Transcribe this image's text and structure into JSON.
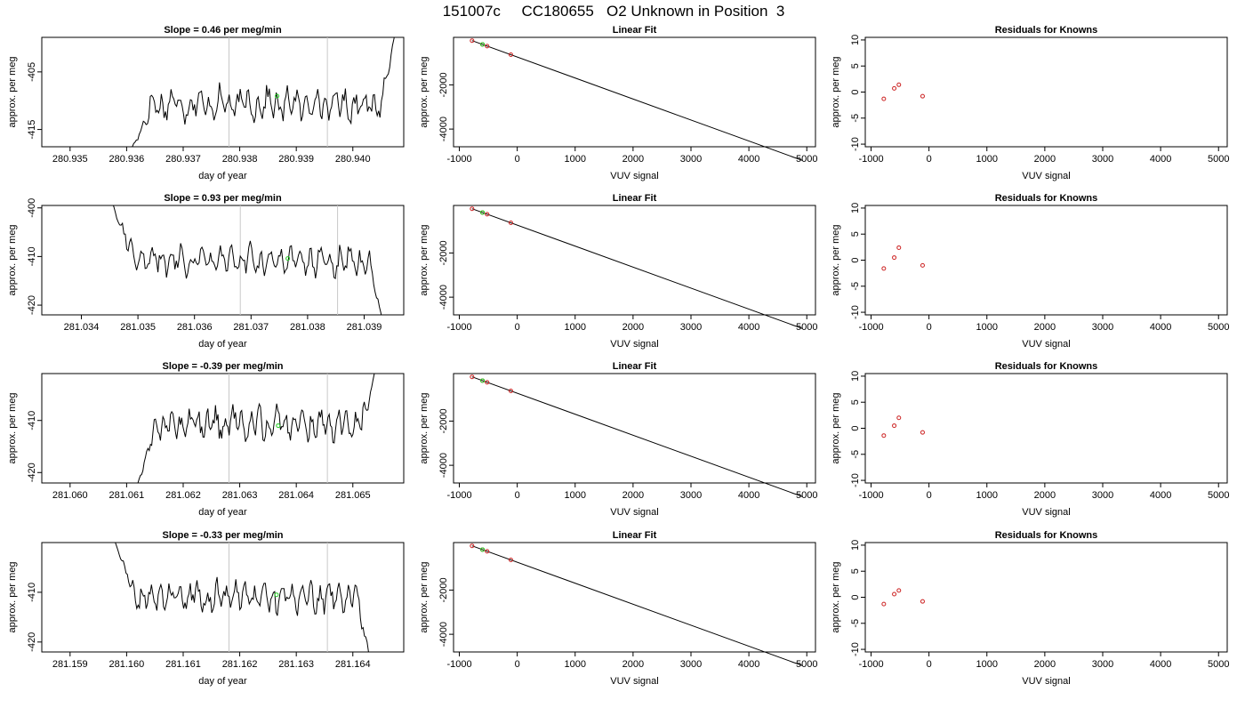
{
  "title": "151007c     CC180655   O2 Unknown in Position  3",
  "colors": {
    "trace": "#000000",
    "known_point": "#cc2222",
    "unknown_point": "#22cc22",
    "window_line": "#c8c8c8"
  },
  "rows": [
    {
      "time": {
        "title": "Slope =  0.46  per meg/min",
        "xlabel": "day of year",
        "ylabel": "approx. per meg",
        "xlim": [
          280.9345,
          280.9409
        ],
        "ylim": [
          -418,
          -399
        ],
        "xticks": [
          280.935,
          280.936,
          280.937,
          280.938,
          280.939,
          280.94
        ],
        "xtick_labels": [
          "280.935",
          "280.936",
          "280.937",
          "280.938",
          "280.939",
          "280.940"
        ],
        "yticks": [
          -405,
          -415
        ],
        "ytick_labels": [
          "-405",
          "-415"
        ],
        "vlines": [
          280.93781,
          280.93955
        ],
        "start": 280.9361,
        "end": 280.94075,
        "base": -410.6,
        "amp": 1.7,
        "jitter": 0.7,
        "start_edge": {
          "from": -418,
          "to": -413
        },
        "end_edge": {
          "from": -413,
          "to": -398
        },
        "marker": {
          "x": 280.93866,
          "y": -409.2
        }
      },
      "fit": {
        "title": "Linear Fit",
        "xlabel": "VUV signal",
        "ylabel": "approx. per meg",
        "xlim": [
          -1100,
          5150
        ],
        "ylim": [
          -4800,
          150
        ],
        "xticks": [
          -1000,
          0,
          1000,
          2000,
          3000,
          4000,
          5000
        ],
        "xtick_labels": [
          "-1000",
          "0",
          "1000",
          "2000",
          "3000",
          "4000",
          "5000"
        ],
        "yticks": [
          -2000,
          -4000
        ],
        "ytick_labels": [
          "-2000",
          "-4000"
        ],
        "line": {
          "x0": -780,
          "x1": 4920,
          "slope": -0.95,
          "intercept": -740
        },
        "knowns_x": [
          -780,
          -600,
          -520,
          -110
        ],
        "unknown_x": -600
      },
      "residuals": {
        "title": "Residuals for Knowns",
        "xlabel": "VUV signal",
        "ylabel": "approx. per meg",
        "xlim": [
          -1100,
          5150
        ],
        "ylim": [
          -10.5,
          10.5
        ],
        "xticks": [
          -1000,
          0,
          1000,
          2000,
          3000,
          4000,
          5000
        ],
        "xtick_labels": [
          "-1000",
          "0",
          "1000",
          "2000",
          "3000",
          "4000",
          "5000"
        ],
        "yticks": [
          10,
          5,
          0,
          -5,
          -10
        ],
        "ytick_labels": [
          "10",
          "5",
          "0",
          "-5",
          "-10"
        ],
        "points": [
          {
            "x": -780,
            "y": -1.3
          },
          {
            "x": -600,
            "y": 0.7
          },
          {
            "x": -520,
            "y": 1.4
          },
          {
            "x": -110,
            "y": -0.8
          }
        ]
      }
    },
    {
      "time": {
        "title": "Slope =  0.93  per meg/min",
        "xlabel": "day of year",
        "ylabel": "approx. per meg",
        "xlim": [
          281.0333,
          281.0397
        ],
        "ylim": [
          -422,
          -399.5
        ],
        "xticks": [
          281.034,
          281.035,
          281.036,
          281.037,
          281.038,
          281.039
        ],
        "xtick_labels": [
          "281.034",
          "281.035",
          "281.036",
          "281.037",
          "281.038",
          "281.039"
        ],
        "yticks": [
          -400,
          -410,
          -420
        ],
        "ytick_labels": [
          "-400",
          "-410",
          "-420"
        ],
        "vlines": [
          281.03681,
          281.03853
        ],
        "start": 281.03455,
        "end": 281.03932,
        "base": -410.8,
        "amp": 2.0,
        "jitter": 0.8,
        "start_edge": {
          "from": -399,
          "to": -408
        },
        "end_edge": {
          "from": -411,
          "to": -423
        },
        "marker": {
          "x": 281.03765,
          "y": -410.4
        }
      },
      "fit": {
        "title": "Linear Fit",
        "xlabel": "VUV signal",
        "ylabel": "approx. per meg",
        "xlim": [
          -1100,
          5150
        ],
        "ylim": [
          -4800,
          150
        ],
        "xticks": [
          -1000,
          0,
          1000,
          2000,
          3000,
          4000,
          5000
        ],
        "xtick_labels": [
          "-1000",
          "0",
          "1000",
          "2000",
          "3000",
          "4000",
          "5000"
        ],
        "yticks": [
          -2000,
          -4000
        ],
        "ytick_labels": [
          "-2000",
          "-4000"
        ],
        "line": {
          "x0": -780,
          "x1": 4920,
          "slope": -0.95,
          "intercept": -740
        },
        "knowns_x": [
          -780,
          -600,
          -520,
          -110
        ],
        "unknown_x": -600
      },
      "residuals": {
        "title": "Residuals for Knowns",
        "xlabel": "VUV signal",
        "ylabel": "approx. per meg",
        "xlim": [
          -1100,
          5150
        ],
        "ylim": [
          -10.5,
          10.5
        ],
        "xticks": [
          -1000,
          0,
          1000,
          2000,
          3000,
          4000,
          5000
        ],
        "xtick_labels": [
          "-1000",
          "0",
          "1000",
          "2000",
          "3000",
          "4000",
          "5000"
        ],
        "yticks": [
          10,
          5,
          0,
          -5,
          -10
        ],
        "ytick_labels": [
          "10",
          "5",
          "0",
          "-5",
          "-10"
        ],
        "points": [
          {
            "x": -780,
            "y": -1.6
          },
          {
            "x": -600,
            "y": 0.5
          },
          {
            "x": -520,
            "y": 2.4
          },
          {
            "x": -110,
            "y": -1.0
          }
        ]
      }
    },
    {
      "time": {
        "title": "Slope =  -0.39  per meg/min",
        "xlabel": "day of year",
        "ylabel": "approx. per meg",
        "xlim": [
          281.0595,
          281.0659
        ],
        "ylim": [
          -422,
          -401
        ],
        "xticks": [
          281.06,
          281.061,
          281.062,
          281.063,
          281.064,
          281.065
        ],
        "xtick_labels": [
          "281.060",
          "281.061",
          "281.062",
          "281.063",
          "281.064",
          "281.065"
        ],
        "yticks": [
          -410,
          -420
        ],
        "ytick_labels": [
          "-410",
          "-420"
        ],
        "vlines": [
          281.06281,
          281.06455
        ],
        "start": 281.0612,
        "end": 281.0654,
        "base": -410.6,
        "amp": 1.9,
        "jitter": 0.8,
        "start_edge": {
          "from": -422,
          "to": -416
        },
        "end_edge": {
          "from": -410,
          "to": -400
        },
        "marker": {
          "x": 281.06368,
          "y": -411.0
        }
      },
      "fit": {
        "title": "Linear Fit",
        "xlabel": "VUV signal",
        "ylabel": "approx. per meg",
        "xlim": [
          -1100,
          5150
        ],
        "ylim": [
          -4800,
          150
        ],
        "xticks": [
          -1000,
          0,
          1000,
          2000,
          3000,
          4000,
          5000
        ],
        "xtick_labels": [
          "-1000",
          "0",
          "1000",
          "2000",
          "3000",
          "4000",
          "5000"
        ],
        "yticks": [
          -2000,
          -4000
        ],
        "ytick_labels": [
          "-2000",
          "-4000"
        ],
        "line": {
          "x0": -780,
          "x1": 4920,
          "slope": -0.95,
          "intercept": -740
        },
        "knowns_x": [
          -780,
          -600,
          -520,
          -110
        ],
        "unknown_x": -600
      },
      "residuals": {
        "title": "Residuals for Knowns",
        "xlabel": "VUV signal",
        "ylabel": "approx. per meg",
        "xlim": [
          -1100,
          5150
        ],
        "ylim": [
          -10.5,
          10.5
        ],
        "xticks": [
          -1000,
          0,
          1000,
          2000,
          3000,
          4000,
          5000
        ],
        "xtick_labels": [
          "-1000",
          "0",
          "1000",
          "2000",
          "3000",
          "4000",
          "5000"
        ],
        "yticks": [
          10,
          5,
          0,
          -5,
          -10
        ],
        "ytick_labels": [
          "10",
          "5",
          "0",
          "-5",
          "-10"
        ],
        "points": [
          {
            "x": -780,
            "y": -1.4
          },
          {
            "x": -600,
            "y": 0.5
          },
          {
            "x": -520,
            "y": 2.0
          },
          {
            "x": -110,
            "y": -0.8
          }
        ]
      }
    },
    {
      "time": {
        "title": "Slope =  -0.33  per meg/min",
        "xlabel": "day of year",
        "ylabel": "approx. per meg",
        "xlim": [
          281.1585,
          281.1649
        ],
        "ylim": [
          -422,
          -400
        ],
        "xticks": [
          281.159,
          281.16,
          281.161,
          281.162,
          281.163,
          281.164
        ],
        "xtick_labels": [
          "281.159",
          "281.160",
          "281.161",
          "281.162",
          "281.163",
          "281.164"
        ],
        "yticks": [
          -410,
          -420
        ],
        "ytick_labels": [
          "-410",
          "-420"
        ],
        "vlines": [
          281.16181,
          281.16355
        ],
        "start": 281.1598,
        "end": 281.1643,
        "base": -411.0,
        "amp": 1.9,
        "jitter": 0.8,
        "start_edge": {
          "from": -400,
          "to": -409
        },
        "end_edge": {
          "from": -410,
          "to": -423
        },
        "marker": {
          "x": 281.16265,
          "y": -410.5
        }
      },
      "fit": {
        "title": "Linear Fit",
        "xlabel": "VUV signal",
        "ylabel": "approx. per meg",
        "xlim": [
          -1100,
          5150
        ],
        "ylim": [
          -4800,
          150
        ],
        "xticks": [
          -1000,
          0,
          1000,
          2000,
          3000,
          4000,
          5000
        ],
        "xtick_labels": [
          "-1000",
          "0",
          "1000",
          "2000",
          "3000",
          "4000",
          "5000"
        ],
        "yticks": [
          -2000,
          -4000
        ],
        "ytick_labels": [
          "-2000",
          "-4000"
        ],
        "line": {
          "x0": -780,
          "x1": 4920,
          "slope": -0.95,
          "intercept": -740
        },
        "knowns_x": [
          -780,
          -600,
          -520,
          -110
        ],
        "unknown_x": -600
      },
      "residuals": {
        "title": "Residuals for Knowns",
        "xlabel": "VUV signal",
        "ylabel": "approx. per meg",
        "xlim": [
          -1100,
          5150
        ],
        "ylim": [
          -10.5,
          10.5
        ],
        "xticks": [
          -1000,
          0,
          1000,
          2000,
          3000,
          4000,
          5000
        ],
        "xtick_labels": [
          "-1000",
          "0",
          "1000",
          "2000",
          "3000",
          "4000",
          "5000"
        ],
        "yticks": [
          10,
          5,
          0,
          -5,
          -10
        ],
        "ytick_labels": [
          "10",
          "5",
          "0",
          "-5",
          "-10"
        ],
        "points": [
          {
            "x": -780,
            "y": -1.3
          },
          {
            "x": -600,
            "y": 0.6
          },
          {
            "x": -520,
            "y": 1.3
          },
          {
            "x": -110,
            "y": -0.8
          }
        ]
      }
    }
  ],
  "chart_data": [
    {
      "type": "line",
      "title": "Slope =  0.46  per meg/min",
      "xlabel": "day of year",
      "ylabel": "approx. per meg",
      "xlim": [
        280.9345,
        280.9409
      ],
      "ylim": [
        -418,
        -399
      ],
      "series": [
        {
          "x_range": [
            280.9361,
            280.94075
          ],
          "mean": -410.6
        }
      ],
      "highlight": {
        "x": 280.93866,
        "y": -409.2
      }
    },
    {
      "type": "line",
      "title": "Linear Fit",
      "xlabel": "VUV signal",
      "ylabel": "approx. per meg",
      "xlim": [
        -1100,
        5150
      ],
      "ylim": [
        -4800,
        150
      ],
      "line": {
        "x": [
          -780,
          4920
        ],
        "y": [
          0,
          -5415
        ]
      },
      "points_x": [
        -780,
        -600,
        -520,
        -110
      ]
    },
    {
      "type": "scatter",
      "title": "Residuals for Knowns",
      "xlabel": "VUV signal",
      "ylabel": "approx. per meg",
      "x": [
        -780,
        -600,
        -520,
        -110
      ],
      "y": [
        -1.3,
        0.7,
        1.4,
        -0.8
      ]
    },
    {
      "type": "line",
      "title": "Slope =  0.93  per meg/min",
      "xlabel": "day of year",
      "ylabel": "approx. per meg",
      "xlim": [
        281.0333,
        281.0397
      ],
      "ylim": [
        -422,
        -399.5
      ],
      "series": [
        {
          "x_range": [
            281.03455,
            281.03932
          ],
          "mean": -410.8
        }
      ],
      "highlight": {
        "x": 281.03765,
        "y": -410.4
      }
    },
    {
      "type": "line",
      "title": "Linear Fit",
      "xlabel": "VUV signal",
      "ylabel": "approx. per meg",
      "xlim": [
        -1100,
        5150
      ],
      "ylim": [
        -4800,
        150
      ],
      "line": {
        "x": [
          -780,
          4920
        ],
        "y": [
          0,
          -5415
        ]
      },
      "points_x": [
        -780,
        -600,
        -520,
        -110
      ]
    },
    {
      "type": "scatter",
      "title": "Residuals for Knowns",
      "xlabel": "VUV signal",
      "ylabel": "approx. per meg",
      "x": [
        -780,
        -600,
        -520,
        -110
      ],
      "y": [
        -1.6,
        0.5,
        2.4,
        -1.0
      ]
    },
    {
      "type": "line",
      "title": "Slope =  -0.39  per meg/min",
      "xlabel": "day of year",
      "ylabel": "approx. per meg",
      "xlim": [
        281.0595,
        281.0659
      ],
      "ylim": [
        -422,
        -401
      ],
      "series": [
        {
          "x_range": [
            281.0612,
            281.0654
          ],
          "mean": -410.6
        }
      ],
      "highlight": {
        "x": 281.06368,
        "y": -411.0
      }
    },
    {
      "type": "line",
      "title": "Linear Fit",
      "xlabel": "VUV signal",
      "ylabel": "approx. per meg",
      "xlim": [
        -1100,
        5150
      ],
      "ylim": [
        -4800,
        150
      ],
      "line": {
        "x": [
          -780,
          4920
        ],
        "y": [
          0,
          -5415
        ]
      },
      "points_x": [
        -780,
        -600,
        -520,
        -110
      ]
    },
    {
      "type": "scatter",
      "title": "Residuals for Knowns",
      "xlabel": "VUV signal",
      "ylabel": "approx. per meg",
      "x": [
        -780,
        -600,
        -520,
        -110
      ],
      "y": [
        -1.4,
        0.5,
        2.0,
        -0.8
      ]
    },
    {
      "type": "line",
      "title": "Slope =  -0.33  per meg/min",
      "xlabel": "day of year",
      "ylabel": "approx. per meg",
      "xlim": [
        281.1585,
        281.1649
      ],
      "ylim": [
        -422,
        -400
      ],
      "series": [
        {
          "x_range": [
            281.1598,
            281.1643
          ],
          "mean": -411.0
        }
      ],
      "highlight": {
        "x": 281.16265,
        "y": -410.5
      }
    },
    {
      "type": "line",
      "title": "Linear Fit",
      "xlabel": "VUV signal",
      "ylabel": "approx. per meg",
      "xlim": [
        -1100,
        5150
      ],
      "ylim": [
        -4800,
        150
      ],
      "line": {
        "x": [
          -780,
          4920
        ],
        "y": [
          0,
          -5415
        ]
      },
      "points_x": [
        -780,
        -600,
        -520,
        -110
      ]
    },
    {
      "type": "scatter",
      "title": "Residuals for Knowns",
      "xlabel": "VUV signal",
      "ylabel": "approx. per meg",
      "x": [
        -780,
        -600,
        -520,
        -110
      ],
      "y": [
        -1.3,
        0.6,
        1.3,
        -0.8
      ]
    }
  ]
}
